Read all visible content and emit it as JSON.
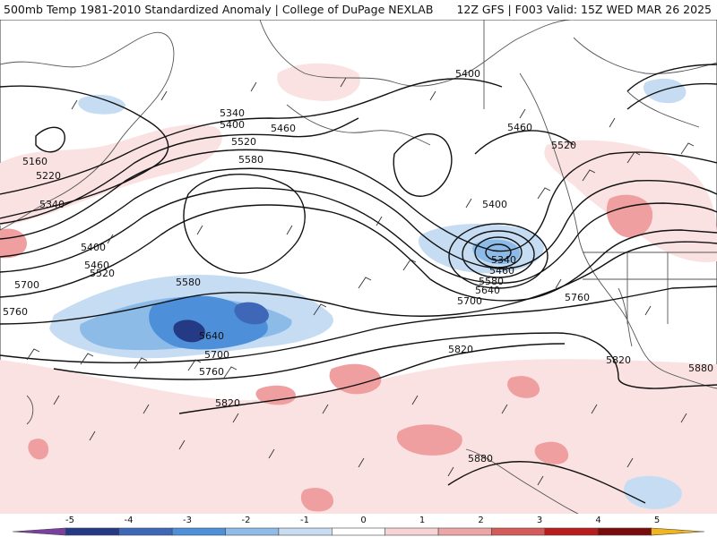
{
  "header": {
    "left": "500mb Temp 1981-2010 Standardized Anomaly | College of DuPage NEXLAB",
    "right": "12Z GFS | F003 Valid: 15Z WED MAR 26 2025"
  },
  "contour_labels": [
    "5160",
    "5220",
    "5340",
    "5400",
    "5460",
    "5520",
    "5580",
    "5640",
    "5700",
    "5760",
    "5820",
    "5880"
  ],
  "colorbar": {
    "ticks": [
      "-5",
      "-4",
      "-3",
      "-2",
      "-1",
      "0",
      "1",
      "2",
      "3",
      "4",
      "5"
    ],
    "colors": [
      "#7b3fa0",
      "#253a85",
      "#3f67b8",
      "#4d8fd9",
      "#8fbde8",
      "#c9ddf2",
      "#ffffff",
      "#f7d3d3",
      "#eda6a6",
      "#d65a5a",
      "#b81c1c",
      "#7a0b0b",
      "#f2b51c"
    ]
  },
  "colors": {
    "land_outline": "#555555",
    "contour": "#111111",
    "wind_barb": "#333333"
  }
}
